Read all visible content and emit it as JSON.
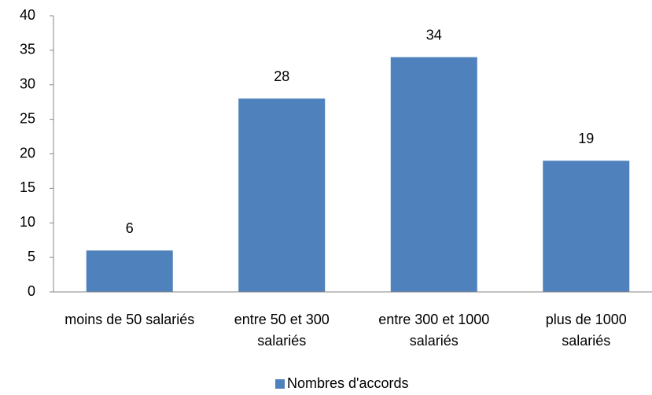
{
  "chart_data": {
    "type": "bar",
    "categories": [
      "moins de 50 salariés",
      "entre 50 et 300 salariés",
      "entre 300 et 1000 salariés",
      "plus de 1000 salariés"
    ],
    "series": [
      {
        "name": "Nombres d'accords",
        "color": "#4f81bd",
        "values": [
          6,
          28,
          34,
          19
        ]
      }
    ],
    "ylim": [
      0,
      40
    ],
    "yticks": [
      0,
      5,
      10,
      15,
      20,
      25,
      30,
      35,
      40
    ],
    "grid": false,
    "legend": "bottom"
  }
}
